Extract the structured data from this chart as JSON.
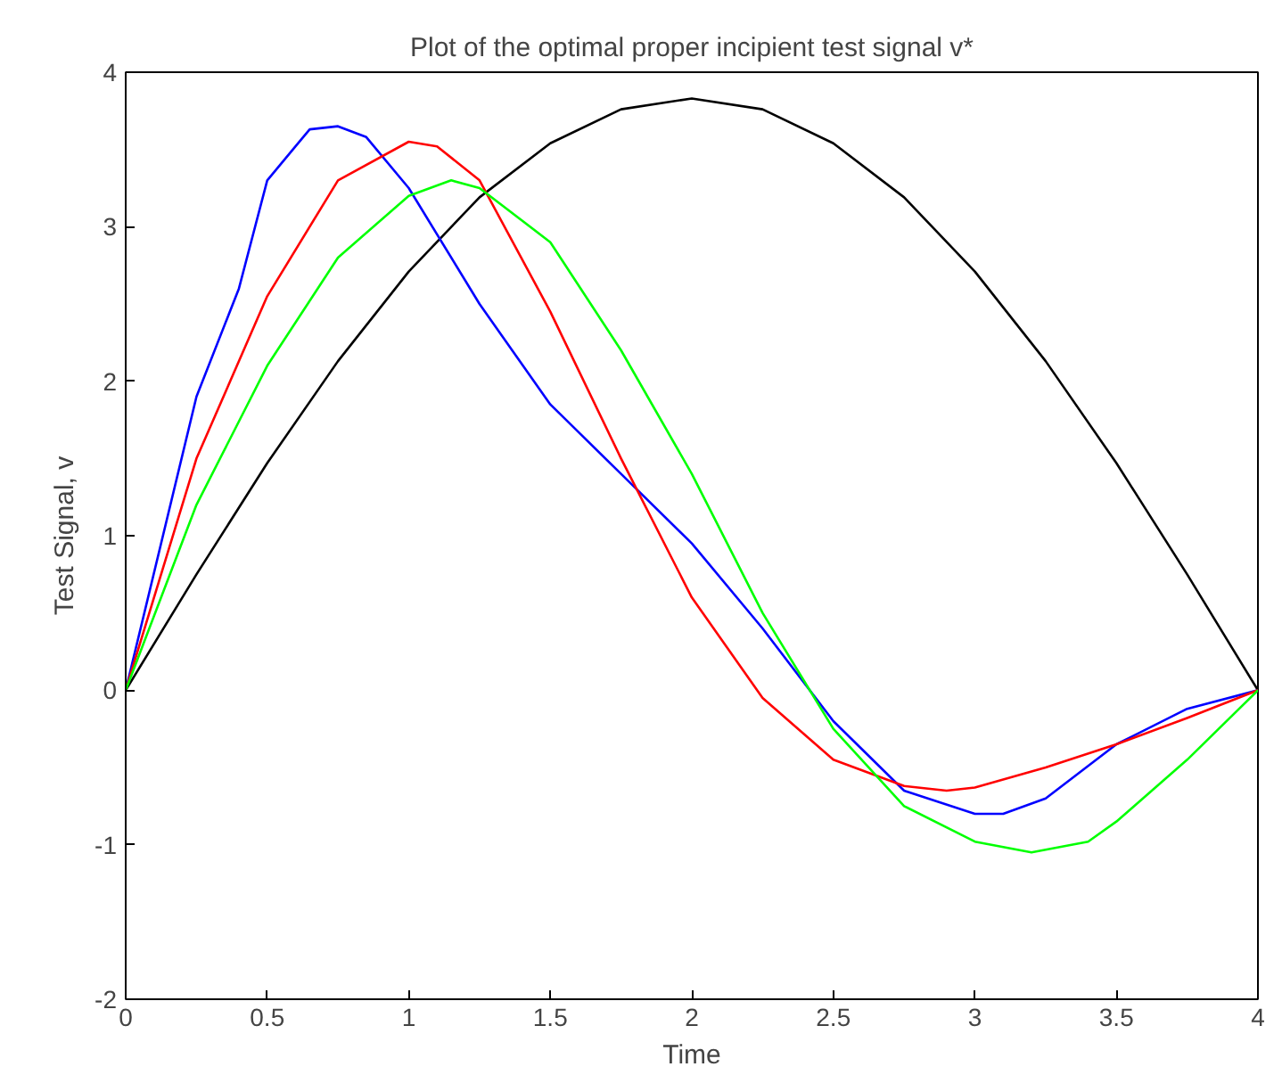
{
  "chart_data": {
    "type": "line",
    "title": "Plot of the optimal proper incipient test signal v*",
    "xlabel": "Time",
    "ylabel": "Test Signal, v",
    "xlim": [
      0,
      4
    ],
    "ylim": [
      -2,
      4
    ],
    "xticks": [
      0,
      0.5,
      1,
      1.5,
      2,
      2.5,
      3,
      3.5,
      4
    ],
    "yticks": [
      -2,
      -1,
      0,
      1,
      2,
      3,
      4
    ],
    "grid": false,
    "marker": "none",
    "line_style": "solid",
    "series": [
      {
        "color": "#000000",
        "x": [
          0,
          0.25,
          0.5,
          0.75,
          1,
          1.25,
          1.5,
          1.75,
          2,
          2.25,
          2.5,
          2.75,
          3,
          3.25,
          3.5,
          3.75,
          4
        ],
        "values": [
          0,
          0.75,
          1.47,
          2.13,
          2.71,
          3.19,
          3.54,
          3.76,
          3.83,
          3.76,
          3.54,
          3.19,
          2.71,
          2.13,
          1.47,
          0.75,
          0
        ]
      },
      {
        "color": "#0000ff",
        "x": [
          0,
          0.25,
          0.4,
          0.5,
          0.6,
          0.65,
          0.75,
          0.85,
          1,
          1.25,
          1.5,
          1.75,
          2,
          2.25,
          2.5,
          2.75,
          3,
          3.1,
          3.25,
          3.5,
          3.75,
          4
        ],
        "values": [
          0,
          1.9,
          2.6,
          3.3,
          3.52,
          3.63,
          3.65,
          3.58,
          3.25,
          2.5,
          1.85,
          1.4,
          0.95,
          0.4,
          -0.2,
          -0.65,
          -0.8,
          -0.8,
          -0.7,
          -0.35,
          -0.12,
          0
        ]
      },
      {
        "color": "#ff0000",
        "x": [
          0,
          0.25,
          0.5,
          0.75,
          1,
          1.1,
          1.25,
          1.5,
          1.75,
          2,
          2.25,
          2.5,
          2.75,
          2.9,
          3,
          3.25,
          3.5,
          3.75,
          4
        ],
        "values": [
          0,
          1.5,
          2.55,
          3.3,
          3.55,
          3.52,
          3.3,
          2.45,
          1.5,
          0.6,
          -0.05,
          -0.45,
          -0.62,
          -0.65,
          -0.63,
          -0.5,
          -0.35,
          -0.18,
          0
        ]
      },
      {
        "color": "#00ff00",
        "x": [
          0,
          0.25,
          0.5,
          0.75,
          1,
          1.15,
          1.25,
          1.5,
          1.75,
          2,
          2.25,
          2.5,
          2.75,
          3,
          3.2,
          3.4,
          3.5,
          3.75,
          4
        ],
        "values": [
          0,
          1.2,
          2.1,
          2.8,
          3.2,
          3.3,
          3.25,
          2.9,
          2.2,
          1.4,
          0.5,
          -0.25,
          -0.75,
          -0.98,
          -1.05,
          -0.98,
          -0.85,
          -0.45,
          0
        ]
      }
    ]
  }
}
